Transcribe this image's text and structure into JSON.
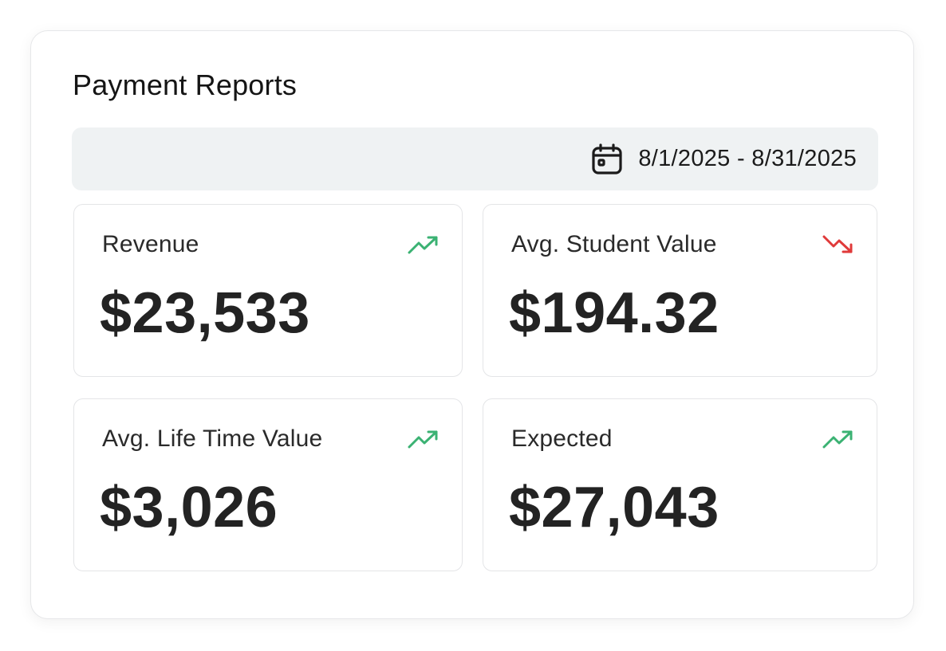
{
  "header": {
    "title": "Payment Reports"
  },
  "date_filter": {
    "icon": "calendar-icon",
    "range": "8/1/2025 - 8/31/2025"
  },
  "metrics": [
    {
      "label": "Revenue",
      "value": "$23,533",
      "trend": "up",
      "trend_icon": "trending-up-icon"
    },
    {
      "label": "Avg. Student Value",
      "value": "$194.32",
      "trend": "down",
      "trend_icon": "trending-down-icon"
    },
    {
      "label": "Avg. Life Time Value",
      "value": "$3,026",
      "trend": "up",
      "trend_icon": "trending-up-icon"
    },
    {
      "label": "Expected",
      "value": "$27,043",
      "trend": "up",
      "trend_icon": "trending-up-icon"
    }
  ],
  "colors": {
    "trend_up": "#3bb273",
    "trend_down": "#e03a3a",
    "date_bar_bg": "#eff2f3"
  }
}
